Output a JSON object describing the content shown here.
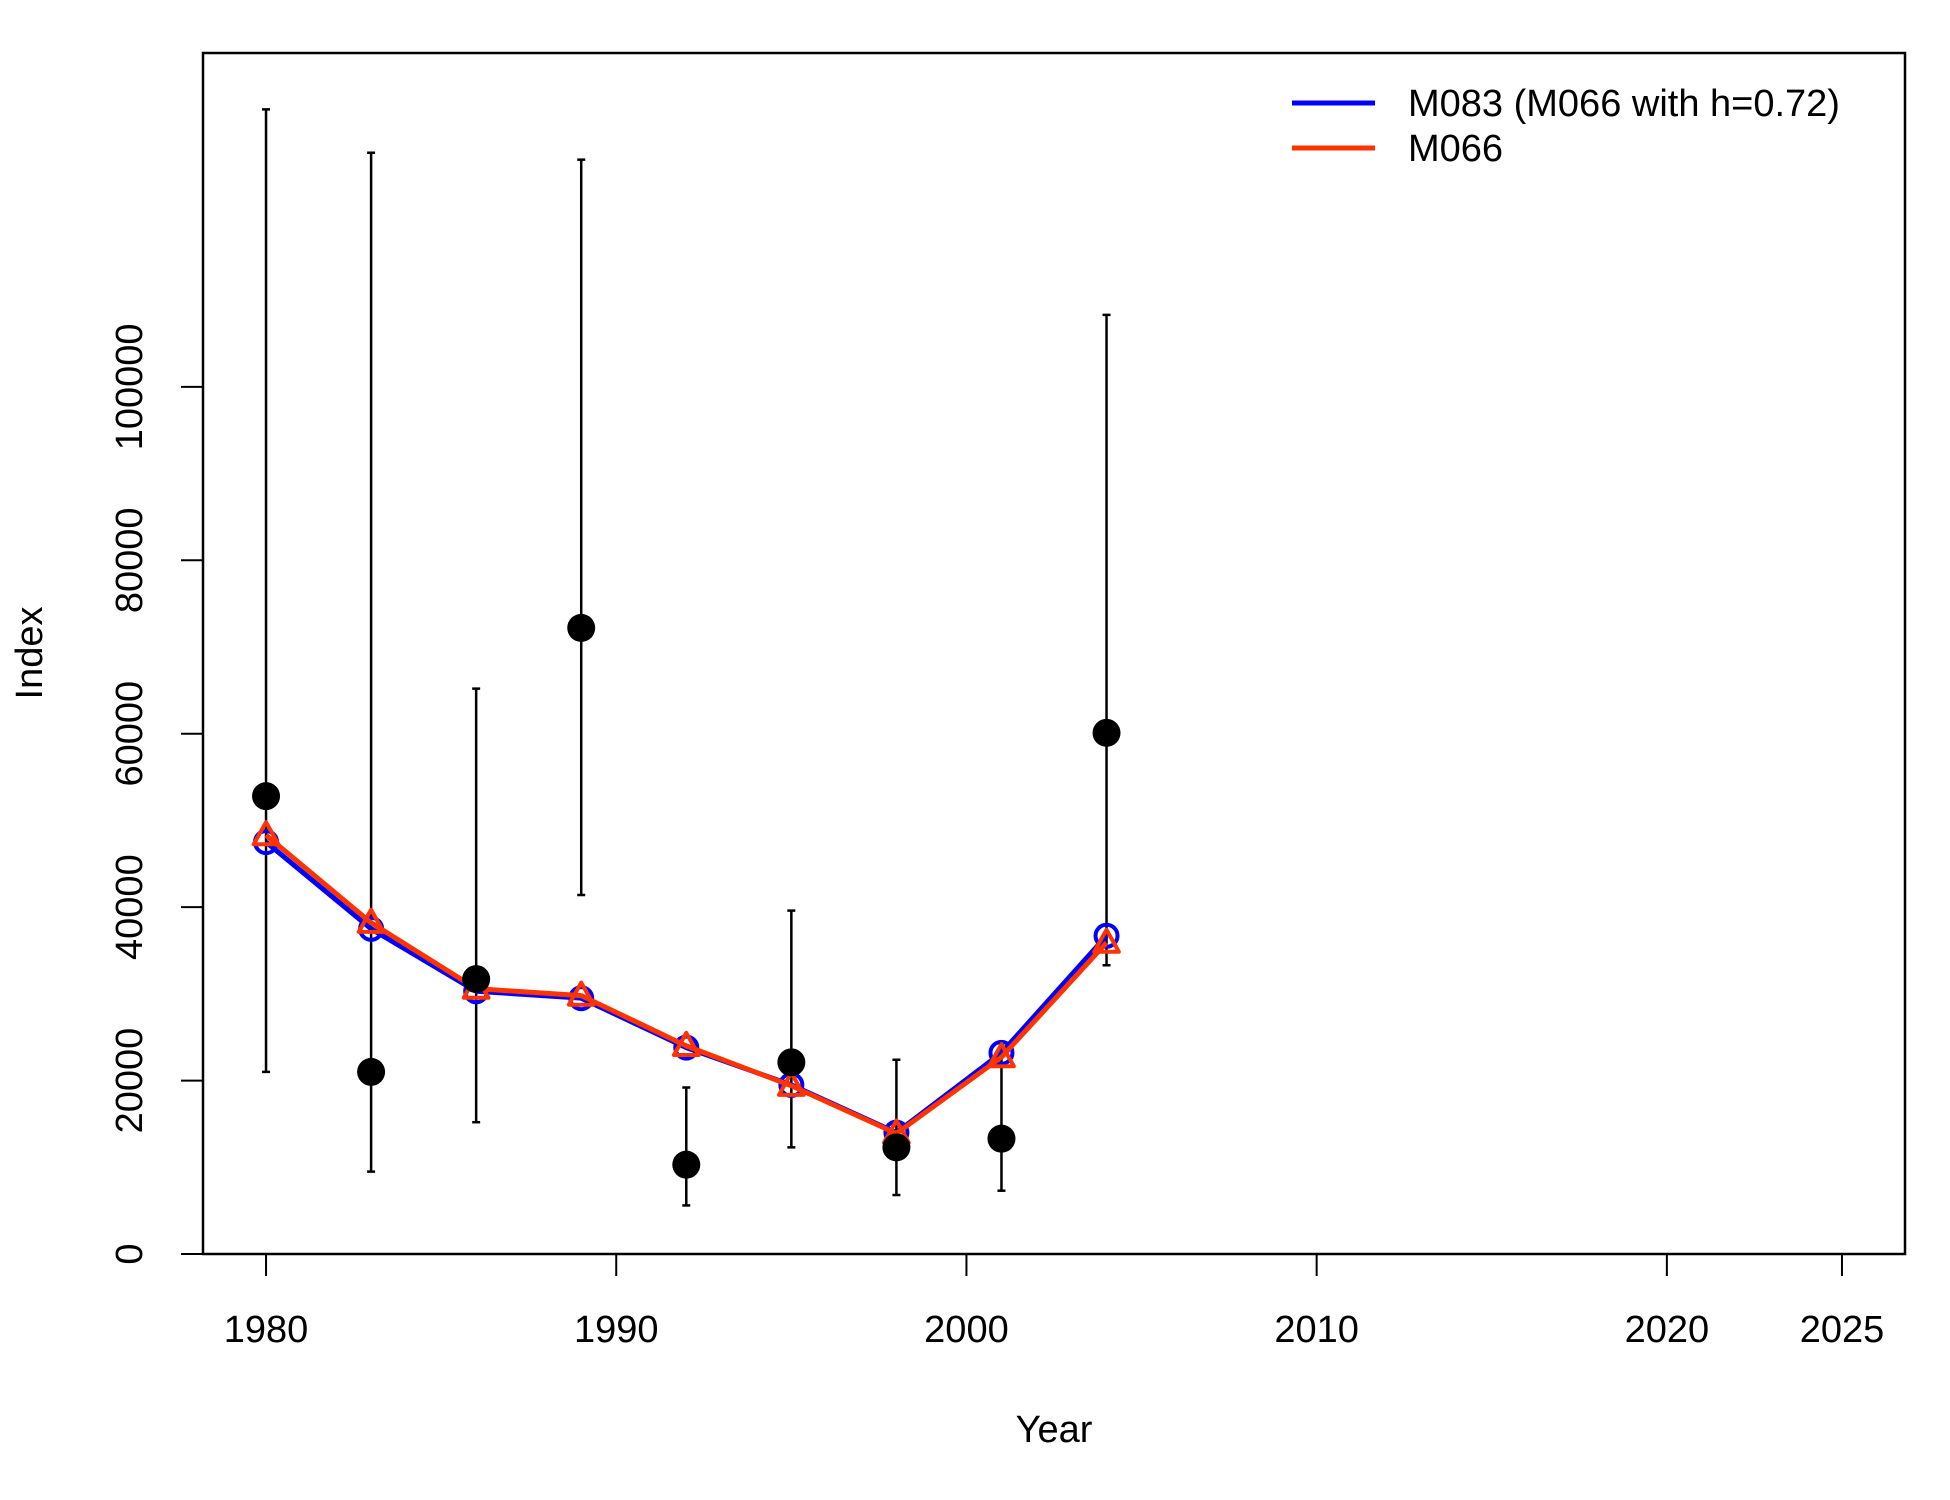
{
  "chart_data": {
    "type": "line",
    "xlabel": "Year",
    "ylabel": "Index",
    "xlim": [
      1978.2,
      2026.8
    ],
    "ylim": [
      0,
      138500
    ],
    "x_ticks": [
      1980,
      1990,
      2000,
      2010,
      2020,
      2025
    ],
    "y_ticks": [
      0,
      20000,
      40000,
      60000,
      80000,
      100000
    ],
    "x_tick_labels": [
      "1980",
      "1990",
      "2000",
      "2010",
      "2020",
      "2025"
    ],
    "y_tick_labels": [
      "0",
      "20000",
      "40000",
      "60000",
      "80000",
      "100000"
    ],
    "grid": false,
    "legend_position": "top-right",
    "observed": {
      "x": [
        1980,
        1983,
        1986,
        1989,
        1992,
        1995,
        1998,
        2001,
        2004
      ],
      "values": [
        52800,
        21000,
        31700,
        72200,
        10300,
        22100,
        12300,
        13300,
        60100
      ],
      "lower": [
        21000,
        9500,
        15200,
        41400,
        5600,
        12300,
        6800,
        7300,
        33300
      ],
      "upper": [
        132000,
        127000,
        65200,
        126200,
        19200,
        39600,
        22400,
        24300,
        108300
      ],
      "color": "#000000"
    },
    "series": [
      {
        "name": "M083 (M066 with h=0.72)",
        "x": [
          1980,
          1983,
          1986,
          1989,
          1992,
          1995,
          1998,
          2001,
          2004
        ],
        "values": [
          47500,
          37500,
          30300,
          29500,
          23800,
          19500,
          14000,
          23200,
          36700
        ],
        "color": "#0000ff",
        "marker": "circle"
      },
      {
        "name": "M066",
        "x": [
          1980,
          1983,
          1986,
          1989,
          1992,
          1995,
          1998,
          2001,
          2004
        ],
        "values": [
          48300,
          38200,
          30600,
          29800,
          24000,
          19400,
          13900,
          22700,
          35900
        ],
        "color": "#ff3300",
        "marker": "triangle"
      }
    ]
  }
}
